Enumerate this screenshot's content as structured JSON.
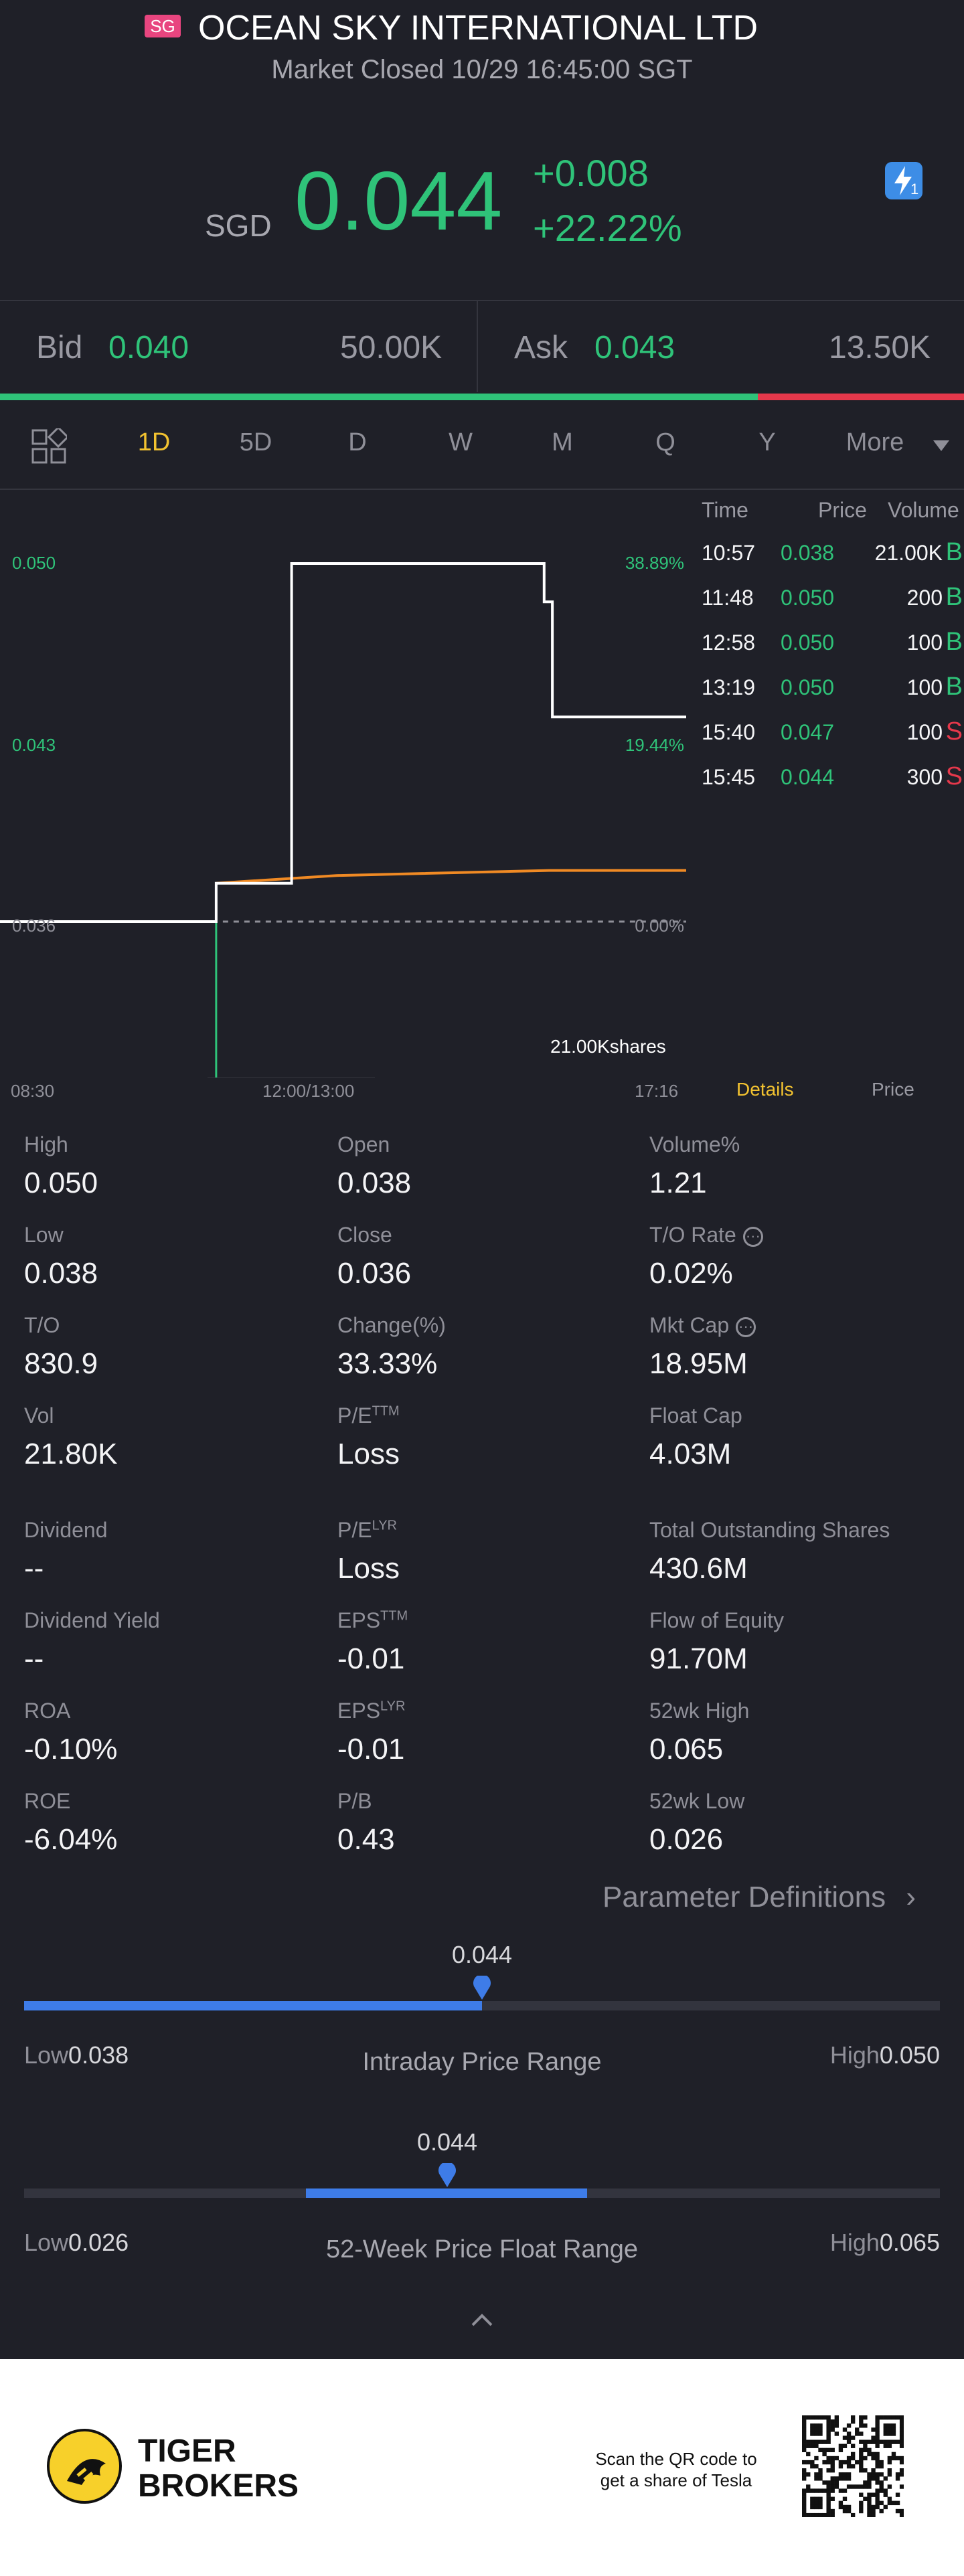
{
  "header": {
    "market_badge": "SG",
    "stock_name": "OCEAN SKY INTERNATIONAL LTD (",
    "market_status": "Market Closed 10/29 16:45:00 SGT"
  },
  "quote": {
    "currency": "SGD",
    "price": "0.044",
    "change": "+0.008",
    "change_pct": "+22.22%",
    "lightning_count": "1"
  },
  "orderbook": {
    "bid_label": "Bid",
    "bid_price": "0.040",
    "bid_size": "50.00K",
    "ask_label": "Ask",
    "ask_price": "0.043",
    "ask_size": "13.50K",
    "bid_ratio": 0.786
  },
  "tabs": [
    "1D",
    "5D",
    "D",
    "W",
    "M",
    "Q",
    "Y",
    "More"
  ],
  "active_tab": "1D",
  "chart_data": {
    "type": "line",
    "y_labels_left": [
      "0.050",
      "0.043",
      "0.036"
    ],
    "y_labels_right": [
      "38.89%",
      "19.44%",
      "0.00%"
    ],
    "x_labels": [
      "08:30",
      "12:00/13:00",
      "17:16"
    ],
    "ylim": [
      0.036,
      0.05
    ],
    "series": [
      {
        "name": "Price",
        "color": "#ffffff",
        "points": [
          [
            0.0,
            0.036
          ],
          [
            0.315,
            0.036
          ],
          [
            0.315,
            0.0375
          ],
          [
            0.425,
            0.0375
          ],
          [
            0.425,
            0.05
          ],
          [
            0.793,
            0.05
          ],
          [
            0.793,
            0.0485
          ],
          [
            0.805,
            0.0485
          ],
          [
            0.805,
            0.044
          ],
          [
            1.0,
            0.044
          ]
        ]
      },
      {
        "name": "Avg",
        "color": "#f08a24",
        "points": [
          [
            0.315,
            0.0375
          ],
          [
            0.49,
            0.0378
          ],
          [
            0.8,
            0.038
          ],
          [
            1.0,
            0.038
          ]
        ]
      }
    ],
    "volume_bar": {
      "x": 0.315,
      "label": "21.00Kshares"
    }
  },
  "trades": {
    "headers": [
      "Time",
      "Price",
      "Volume"
    ],
    "rows": [
      {
        "time": "10:57",
        "price": "0.038",
        "volume": "21.00K",
        "side": "B"
      },
      {
        "time": "11:48",
        "price": "0.050",
        "volume": "200",
        "side": "B"
      },
      {
        "time": "12:58",
        "price": "0.050",
        "volume": "100",
        "side": "B"
      },
      {
        "time": "13:19",
        "price": "0.050",
        "volume": "100",
        "side": "B"
      },
      {
        "time": "15:40",
        "price": "0.047",
        "volume": "100",
        "side": "S"
      },
      {
        "time": "15:45",
        "price": "0.044",
        "volume": "300",
        "side": "S"
      }
    ],
    "tab_details": "Details",
    "tab_price": "Price"
  },
  "stats": [
    {
      "label": "High",
      "value": "0.050"
    },
    {
      "label": "Open",
      "value": "0.038"
    },
    {
      "label": "Volume%",
      "value": "1.21"
    },
    {
      "label": "Low",
      "value": "0.038"
    },
    {
      "label": "Close",
      "value": "0.036"
    },
    {
      "label": "T/O Rate",
      "value": "0.02%",
      "info": true
    },
    {
      "label": "T/O",
      "value": "830.9"
    },
    {
      "label": "Change(%)",
      "value": "33.33%"
    },
    {
      "label": "Mkt Cap",
      "value": "18.95M",
      "info": true
    },
    {
      "label": "Vol",
      "value": "21.80K"
    },
    {
      "label": "P/E",
      "sup": "TTM",
      "value": "Loss"
    },
    {
      "label": "Float Cap",
      "value": "4.03M"
    },
    {
      "label": "Dividend",
      "value": "--"
    },
    {
      "label": "P/E",
      "sup": "LYR",
      "value": "Loss"
    },
    {
      "label": "Total Outstanding Shares",
      "value": "430.6M"
    },
    {
      "label": "Dividend Yield",
      "value": "--"
    },
    {
      "label": "EPS",
      "sup": "TTM",
      "value": "-0.01"
    },
    {
      "label": "Flow of Equity",
      "value": "91.70M"
    },
    {
      "label": "ROA",
      "value": "-0.10%"
    },
    {
      "label": "EPS",
      "sup": "LYR",
      "value": "-0.01"
    },
    {
      "label": "52wk High",
      "value": "0.065"
    },
    {
      "label": "ROE",
      "value": "-6.04%"
    },
    {
      "label": "P/B",
      "value": "0.43"
    },
    {
      "label": "52wk Low",
      "value": "0.026"
    }
  ],
  "param_link": "Parameter Definitions",
  "intraday_range": {
    "current": "0.044",
    "low_label": "Low",
    "low": "0.038",
    "high_label": "High",
    "high": "0.050",
    "title": "Intraday Price Range",
    "fill_from": 0.0,
    "fill_to": 0.5,
    "marker": 0.5
  },
  "week52_range": {
    "current": "0.044",
    "low_label": "Low",
    "low": "0.026",
    "high_label": "High",
    "high": "0.065",
    "title": "52-Week Price Float Range",
    "fill_from": 0.308,
    "fill_to": 0.615,
    "marker": 0.462
  },
  "footer": {
    "brand_line1": "TIGER",
    "brand_line2": "BROKERS",
    "scan_line1": "Scan the QR code to",
    "scan_line2": "get a share of Tesla"
  },
  "colors": {
    "up": "#2fc379",
    "down": "#e5384b",
    "accent": "#f2c230",
    "blue": "#3e7ce8"
  }
}
